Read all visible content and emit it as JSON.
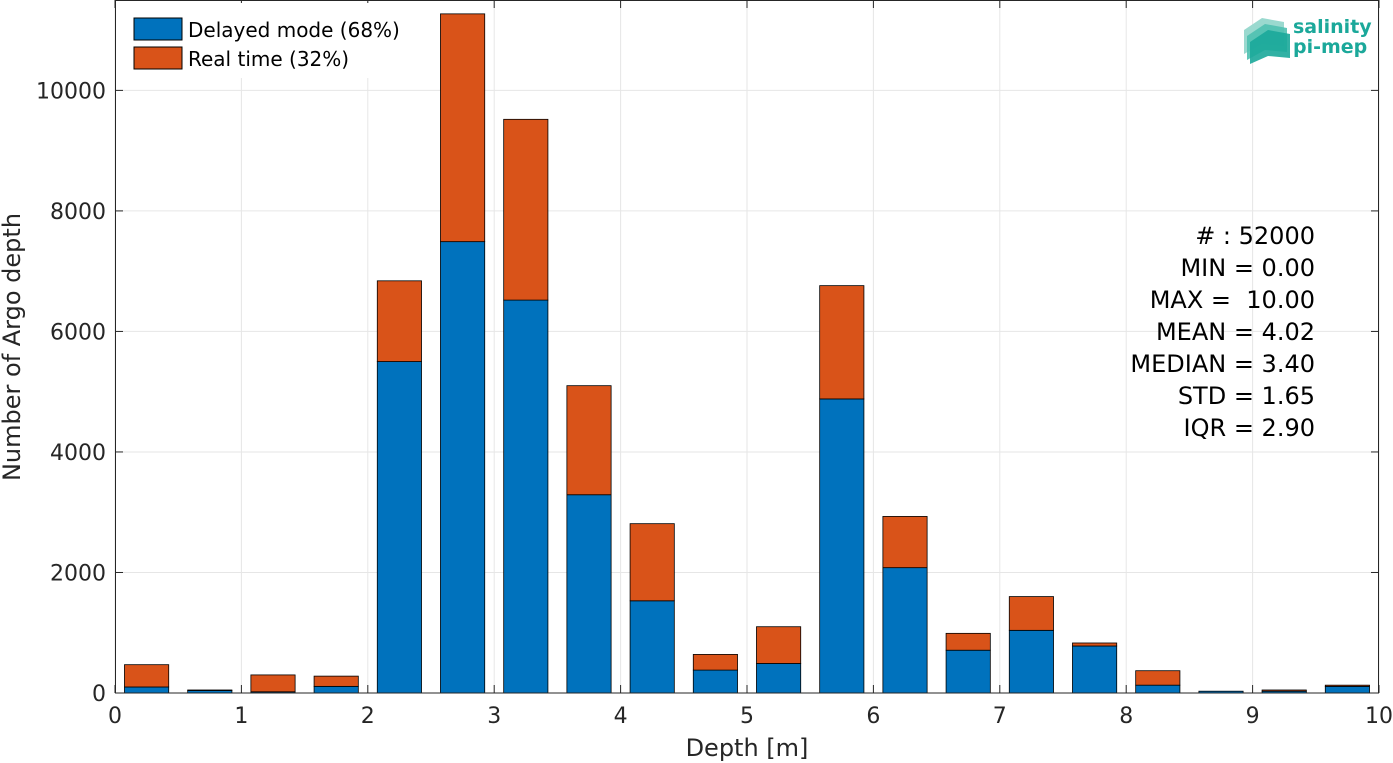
{
  "chart_data": {
    "type": "bar",
    "stacked": true,
    "title": "",
    "xlabel": "Depth [m]",
    "ylabel": "Number of Argo depth",
    "xlim": [
      0,
      10
    ],
    "ylim": [
      0,
      11500
    ],
    "bin_width": 0.5,
    "bar_width_fraction": 0.7,
    "x": [
      0.25,
      0.75,
      1.25,
      1.75,
      2.25,
      2.75,
      3.25,
      3.75,
      4.25,
      4.75,
      5.25,
      5.75,
      6.25,
      6.75,
      7.25,
      7.75,
      8.25,
      8.75,
      9.25,
      9.75
    ],
    "xticks": [
      0,
      1,
      2,
      3,
      4,
      5,
      6,
      7,
      8,
      9,
      10
    ],
    "yticks": [
      0,
      2000,
      4000,
      6000,
      8000,
      10000
    ],
    "grid": true,
    "legend_position": "top-left",
    "series": [
      {
        "name": "Delayed mode (68%)",
        "color": "#0072bd",
        "values": [
          100,
          40,
          20,
          110,
          5500,
          7490,
          6520,
          3290,
          1530,
          380,
          490,
          4880,
          2080,
          710,
          1040,
          780,
          130,
          30,
          30,
          110
        ]
      },
      {
        "name": "Real time (32%)",
        "color": "#d95319",
        "values": [
          370,
          10,
          280,
          170,
          1340,
          3780,
          3000,
          1810,
          1280,
          260,
          610,
          1880,
          850,
          280,
          560,
          50,
          240,
          0,
          20,
          20
        ]
      }
    ],
    "annotations": [
      "# : 52000",
      "MIN = 0.00",
      "MAX =  10.00",
      "MEAN = 4.02",
      "MEDIAN = 3.40",
      "STD = 1.65",
      "IQR = 2.90"
    ]
  },
  "logo": {
    "line1": "salinity",
    "line2": "pi-mep",
    "color": "#1ba89a"
  }
}
